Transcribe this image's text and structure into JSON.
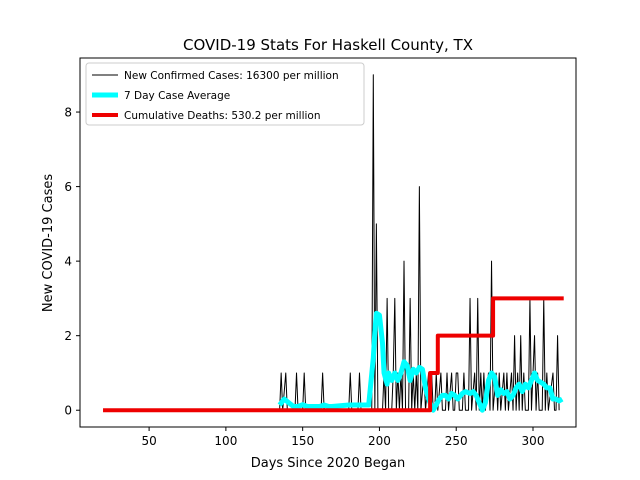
{
  "chart_data": {
    "type": "line",
    "title": "COVID-19 Stats For Haskell County, TX",
    "xlabel": "Days Since 2020 Began",
    "ylabel": "New COVID-19 Cases",
    "xlim": [
      5,
      328
    ],
    "ylim": [
      -0.45,
      9.45
    ],
    "xticks": [
      50,
      100,
      150,
      200,
      250,
      300
    ],
    "yticks": [
      0,
      2,
      4,
      6,
      8
    ],
    "legend_position": "top-left",
    "grid": false,
    "series": [
      {
        "name": "New Confirmed Cases: 16300 per million",
        "color": "#000000",
        "points": [
          [
            135,
            0
          ],
          [
            136,
            1
          ],
          [
            137,
            0
          ],
          [
            139,
            1
          ],
          [
            140,
            0
          ],
          [
            145,
            0
          ],
          [
            146,
            1
          ],
          [
            147,
            0
          ],
          [
            150,
            0
          ],
          [
            151,
            1
          ],
          [
            152,
            0
          ],
          [
            162,
            0
          ],
          [
            163,
            1
          ],
          [
            164,
            0
          ],
          [
            180,
            0
          ],
          [
            181,
            1
          ],
          [
            182,
            0
          ],
          [
            186,
            0
          ],
          [
            187,
            1
          ],
          [
            188,
            0
          ],
          [
            195,
            0
          ],
          [
            196,
            9
          ],
          [
            197,
            0
          ],
          [
            198,
            5
          ],
          [
            199,
            0
          ],
          [
            202,
            0
          ],
          [
            203,
            1
          ],
          [
            204,
            0
          ],
          [
            205,
            3
          ],
          [
            206,
            0
          ],
          [
            208,
            0
          ],
          [
            209,
            1
          ],
          [
            210,
            3
          ],
          [
            211,
            0
          ],
          [
            212,
            1
          ],
          [
            213,
            0
          ],
          [
            214,
            1
          ],
          [
            215,
            0
          ],
          [
            216,
            4
          ],
          [
            217,
            0
          ],
          [
            219,
            0
          ],
          [
            220,
            3
          ],
          [
            221,
            0
          ],
          [
            222,
            1
          ],
          [
            223,
            0
          ],
          [
            224,
            1
          ],
          [
            225,
            0
          ],
          [
            226,
            6
          ],
          [
            227,
            0
          ],
          [
            229,
            1
          ],
          [
            230,
            0
          ],
          [
            232,
            1
          ],
          [
            233,
            0
          ],
          [
            234,
            1
          ],
          [
            235,
            0
          ],
          [
            236,
            0
          ],
          [
            237,
            1
          ],
          [
            238,
            0
          ],
          [
            240,
            1
          ],
          [
            241,
            0
          ],
          [
            243,
            0
          ],
          [
            244,
            1
          ],
          [
            245,
            0
          ],
          [
            247,
            1
          ],
          [
            248,
            0
          ],
          [
            249,
            0
          ],
          [
            250,
            1
          ],
          [
            251,
            1
          ],
          [
            252,
            0
          ],
          [
            254,
            0
          ],
          [
            255,
            1
          ],
          [
            256,
            0
          ],
          [
            258,
            0
          ],
          [
            259,
            3
          ],
          [
            260,
            0
          ],
          [
            262,
            1
          ],
          [
            263,
            0
          ],
          [
            264,
            3
          ],
          [
            265,
            0
          ],
          [
            266,
            1
          ],
          [
            267,
            0
          ],
          [
            268,
            1
          ],
          [
            269,
            0
          ],
          [
            271,
            1
          ],
          [
            272,
            0
          ],
          [
            273,
            4
          ],
          [
            274,
            0
          ],
          [
            276,
            1
          ],
          [
            277,
            0
          ],
          [
            278,
            1
          ],
          [
            279,
            0
          ],
          [
            281,
            1
          ],
          [
            282,
            0
          ],
          [
            283,
            1
          ],
          [
            284,
            0
          ],
          [
            286,
            1
          ],
          [
            287,
            0
          ],
          [
            288,
            2
          ],
          [
            289,
            0
          ],
          [
            290,
            1
          ],
          [
            291,
            0
          ],
          [
            292,
            2
          ],
          [
            293,
            0
          ],
          [
            294,
            1
          ],
          [
            295,
            0
          ],
          [
            297,
            0
          ],
          [
            298,
            3
          ],
          [
            299,
            0
          ],
          [
            300,
            1
          ],
          [
            301,
            2
          ],
          [
            302,
            0
          ],
          [
            303,
            1
          ],
          [
            304,
            0
          ],
          [
            306,
            0
          ],
          [
            307,
            3
          ],
          [
            308,
            0
          ],
          [
            309,
            1
          ],
          [
            310,
            0
          ],
          [
            313,
            1
          ],
          [
            314,
            0
          ],
          [
            315,
            0
          ],
          [
            316,
            2
          ],
          [
            317,
            0
          ]
        ],
        "width": 1
      },
      {
        "name": "7 Day Case Average",
        "color": "#00ffff",
        "points": [
          [
            135,
            0.14
          ],
          [
            138,
            0.3
          ],
          [
            141,
            0.2
          ],
          [
            144,
            0.1
          ],
          [
            147,
            0.1
          ],
          [
            150,
            0.15
          ],
          [
            153,
            0.1
          ],
          [
            155,
            0.1
          ],
          [
            158,
            0.1
          ],
          [
            161,
            0.1
          ],
          [
            164,
            0.14
          ],
          [
            167,
            0.1
          ],
          [
            169,
            0.1
          ],
          [
            180,
            0.14
          ],
          [
            183,
            0.14
          ],
          [
            186,
            0.14
          ],
          [
            189,
            0.14
          ],
          [
            193,
            0.14
          ],
          [
            196,
            1.4
          ],
          [
            197,
            2.1
          ],
          [
            198,
            2.6
          ],
          [
            200,
            2.55
          ],
          [
            202,
            1.8
          ],
          [
            203,
            1.0
          ],
          [
            205,
            0.7
          ],
          [
            206,
            1.0
          ],
          [
            208,
            0.8
          ],
          [
            210,
            1.0
          ],
          [
            212,
            0.8
          ],
          [
            214,
            1.0
          ],
          [
            216,
            1.3
          ],
          [
            218,
            1.2
          ],
          [
            220,
            0.8
          ],
          [
            222,
            1.1
          ],
          [
            224,
            1.0
          ],
          [
            226,
            1.15
          ],
          [
            228,
            1.1
          ],
          [
            230,
            0.6
          ],
          [
            232,
            0.3
          ],
          [
            235,
            0.0
          ],
          [
            237,
            0.15
          ],
          [
            239,
            0.3
          ],
          [
            241,
            0.4
          ],
          [
            243,
            0.4
          ],
          [
            245,
            0.3
          ],
          [
            247,
            0.45
          ],
          [
            249,
            0.4
          ],
          [
            251,
            0.3
          ],
          [
            254,
            0.45
          ],
          [
            256,
            0.5
          ],
          [
            259,
            0.45
          ],
          [
            261,
            0.5
          ],
          [
            263,
            0.4
          ],
          [
            265,
            0.2
          ],
          [
            267,
            0.0
          ],
          [
            269,
            0.2
          ],
          [
            271,
            0.8
          ],
          [
            273,
            1.0
          ],
          [
            275,
            0.9
          ],
          [
            277,
            0.4
          ],
          [
            279,
            0.55
          ],
          [
            281,
            0.45
          ],
          [
            283,
            0.5
          ],
          [
            285,
            0.3
          ],
          [
            287,
            0.4
          ],
          [
            289,
            0.6
          ],
          [
            291,
            0.7
          ],
          [
            293,
            0.5
          ],
          [
            295,
            0.7
          ],
          [
            297,
            0.6
          ],
          [
            299,
            0.8
          ],
          [
            301,
            1.0
          ],
          [
            303,
            0.8
          ],
          [
            305,
            0.75
          ],
          [
            307,
            0.7
          ],
          [
            309,
            0.6
          ],
          [
            311,
            0.6
          ],
          [
            313,
            0.3
          ],
          [
            315,
            0.3
          ],
          [
            317,
            0.25
          ],
          [
            319,
            0.3
          ]
        ],
        "width": 5
      },
      {
        "name": "Cumulative Deaths: 530.2 per million",
        "color": "#ee0000",
        "points": [
          [
            20,
            0
          ],
          [
            233,
            0
          ],
          [
            233,
            1
          ],
          [
            238,
            1
          ],
          [
            238,
            2
          ],
          [
            274,
            2
          ],
          [
            274,
            3
          ],
          [
            320,
            3
          ]
        ],
        "width": 4
      }
    ]
  }
}
